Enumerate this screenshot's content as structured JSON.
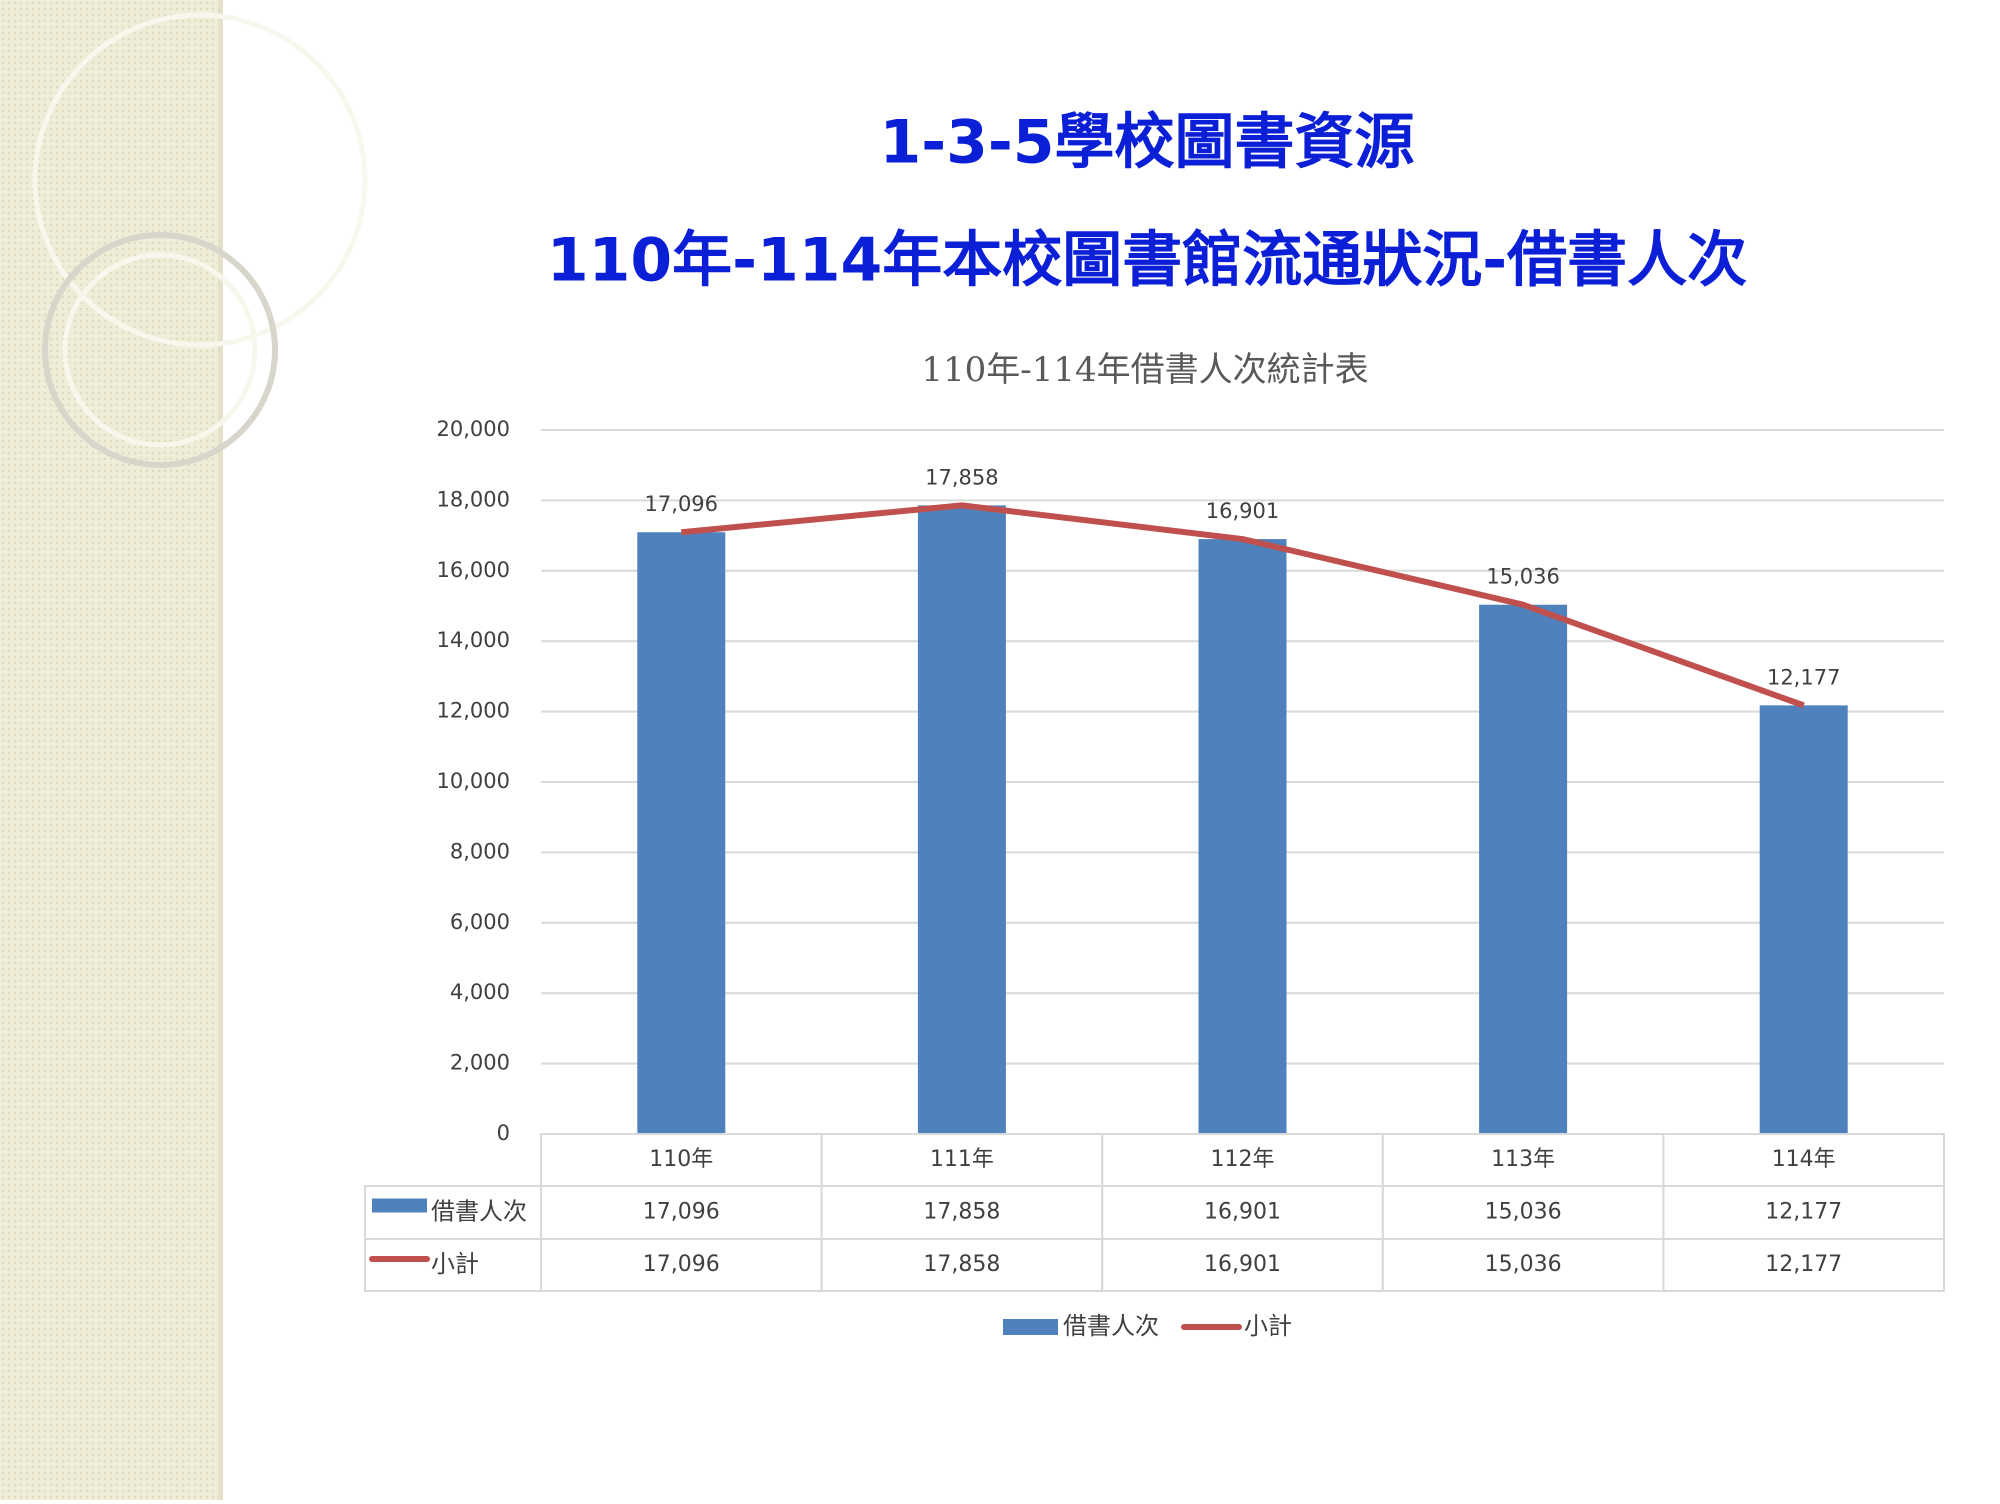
{
  "slide": {
    "title": "1-3-5學校圖書資源",
    "subtitle": "110年-114年本校圖書館流通狀況-借書人次"
  },
  "chart_data": {
    "type": "bar",
    "title": "110年-114年借書人次統計表",
    "categories": [
      "110年",
      "111年",
      "112年",
      "113年",
      "114年"
    ],
    "series": [
      {
        "name": "借書人次",
        "type": "bar",
        "color": "#4f81bd",
        "values": [
          17096,
          17858,
          16901,
          15036,
          12177
        ],
        "value_labels": [
          "17,096",
          "17,858",
          "16,901",
          "15,036",
          "12,177"
        ]
      },
      {
        "name": "小計",
        "type": "line",
        "color": "#c0504d",
        "values": [
          17096,
          17858,
          16901,
          15036,
          12177
        ],
        "value_labels": [
          "17,096",
          "17,858",
          "16,901",
          "15,036",
          "12,177"
        ]
      }
    ],
    "ylim": [
      0,
      20000
    ],
    "yticks": [
      0,
      {
        "value": 2000,
        "label": "2,000"
      },
      {
        "value": 4000,
        "label": "4,000"
      },
      {
        "value": 6000,
        "label": "6,000"
      },
      {
        "value": 8000,
        "label": "8,000"
      },
      {
        "value": 10000,
        "label": "10,000"
      },
      {
        "value": 12000,
        "label": "12,000"
      },
      {
        "value": 14000,
        "label": "14,000"
      },
      {
        "value": 16000,
        "label": "16,000"
      },
      {
        "value": 18000,
        "label": "18,000"
      },
      {
        "value": 20000,
        "label": "20,000"
      }
    ],
    "grid": true,
    "legend": "bottom",
    "data_table": true
  }
}
